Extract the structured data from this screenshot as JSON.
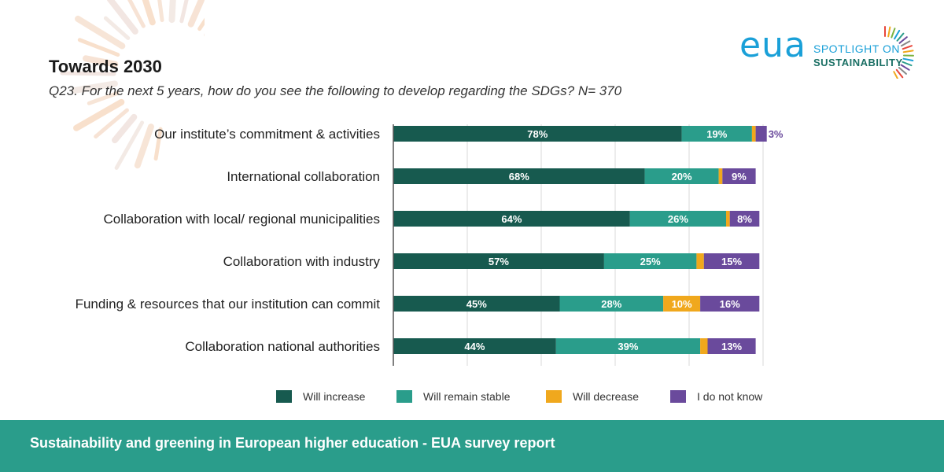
{
  "title": "Towards 2030",
  "subtitle": "Q23. For the next 5 years, how do you see the following to develop regarding the SDGs? N= 370",
  "logo": {
    "brand": "eua",
    "line1": "SPOTLIGHT ON",
    "line2": "SUSTAINABILITY"
  },
  "footer": "Sustainability and greening in European higher education - EUA survey report",
  "colors": {
    "increase": "#175a4f",
    "stable": "#2a9d8b",
    "decrease": "#f0a81d",
    "unknown": "#6a4a9c"
  },
  "chart_data": {
    "type": "bar",
    "orientation": "horizontal",
    "stacked": true,
    "title": "Towards 2030",
    "categories": [
      "Our institute’s commitment & activities",
      "International collaboration",
      "Collaboration with local/ regional municipalities",
      "Collaboration with industry",
      "Funding & resources that our institution can commit",
      "Collaboration national authorities"
    ],
    "series": [
      {
        "name": "Will increase",
        "key": "increase",
        "values": [
          78,
          68,
          64,
          57,
          45,
          44
        ]
      },
      {
        "name": "Will remain stable",
        "key": "stable",
        "values": [
          19,
          20,
          26,
          25,
          28,
          39
        ]
      },
      {
        "name": "Will decrease",
        "key": "decrease",
        "values": [
          1,
          1,
          1,
          2,
          10,
          2
        ]
      },
      {
        "name": "I do not know",
        "key": "unknown",
        "values": [
          3,
          9,
          8,
          15,
          16,
          13
        ]
      }
    ],
    "data_labels": [
      [
        "78%",
        "19%",
        "",
        "3%"
      ],
      [
        "68%",
        "20%",
        "",
        "9%"
      ],
      [
        "64%",
        "26%",
        "",
        "8%"
      ],
      [
        "57%",
        "25%",
        "",
        "15%"
      ],
      [
        "45%",
        "28%",
        "10%",
        "16%"
      ],
      [
        "44%",
        "39%",
        "",
        "13%"
      ]
    ],
    "xlim": [
      0,
      100
    ],
    "legend_position": "bottom"
  }
}
